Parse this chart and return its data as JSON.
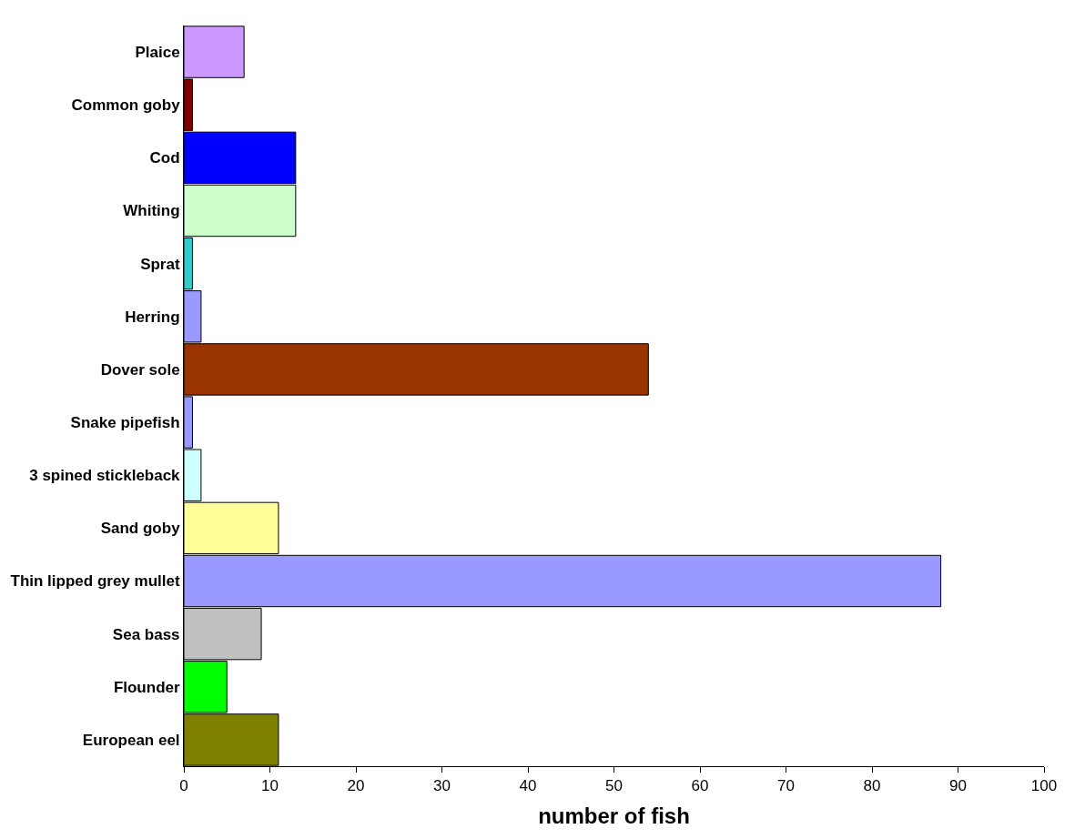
{
  "chart_data": {
    "type": "bar",
    "orientation": "horizontal",
    "xlabel": "number of fish",
    "categories": [
      "Plaice",
      "Common goby",
      "Cod",
      "Whiting",
      "Sprat",
      "Herring",
      "Dover sole",
      "Snake pipefish",
      "3 spined stickleback",
      "Sand goby",
      "Thin lipped grey mullet",
      "Sea bass",
      "Flounder",
      "European eel"
    ],
    "values": [
      7,
      1,
      13,
      13,
      1,
      2,
      54,
      1,
      2,
      11,
      88,
      9,
      5,
      11
    ],
    "colors": [
      "#cc99ff",
      "#800000",
      "#0000ff",
      "#ccffcc",
      "#33cccc",
      "#9999ff",
      "#993300",
      "#9999ff",
      "#ccffff",
      "#ffff99",
      "#9999ff",
      "#c0c0c0",
      "#00ff00",
      "#808000"
    ],
    "xlim": [
      0,
      100
    ],
    "xticks": [
      0,
      10,
      20,
      30,
      40,
      50,
      60,
      70,
      80,
      90,
      100
    ]
  }
}
